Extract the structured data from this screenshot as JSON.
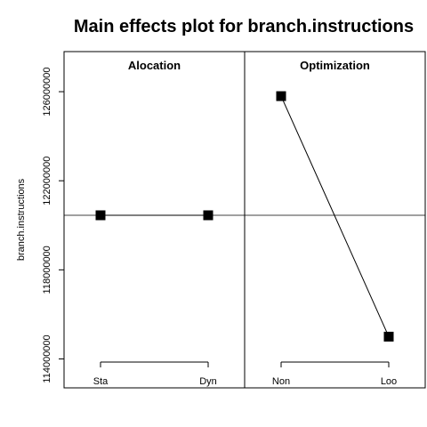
{
  "chart_data": {
    "type": "line",
    "title": "Main effects plot for branch.instructions",
    "ylabel": "branch.instructions",
    "ylim": [
      112700000,
      127800000
    ],
    "yticks": [
      114000000,
      118000000,
      122000000,
      126000000
    ],
    "ytick_labels": [
      "114000000",
      "118000000",
      "122000000",
      "126000000"
    ],
    "grand_mean": 120450000,
    "panels": [
      {
        "name": "Alocation",
        "categories": [
          "Sta",
          "Dyn"
        ],
        "values": [
          120450000,
          120450000
        ]
      },
      {
        "name": "Optimization",
        "categories": [
          "Non",
          "Loo"
        ],
        "values": [
          125800000,
          115000000
        ]
      }
    ]
  }
}
